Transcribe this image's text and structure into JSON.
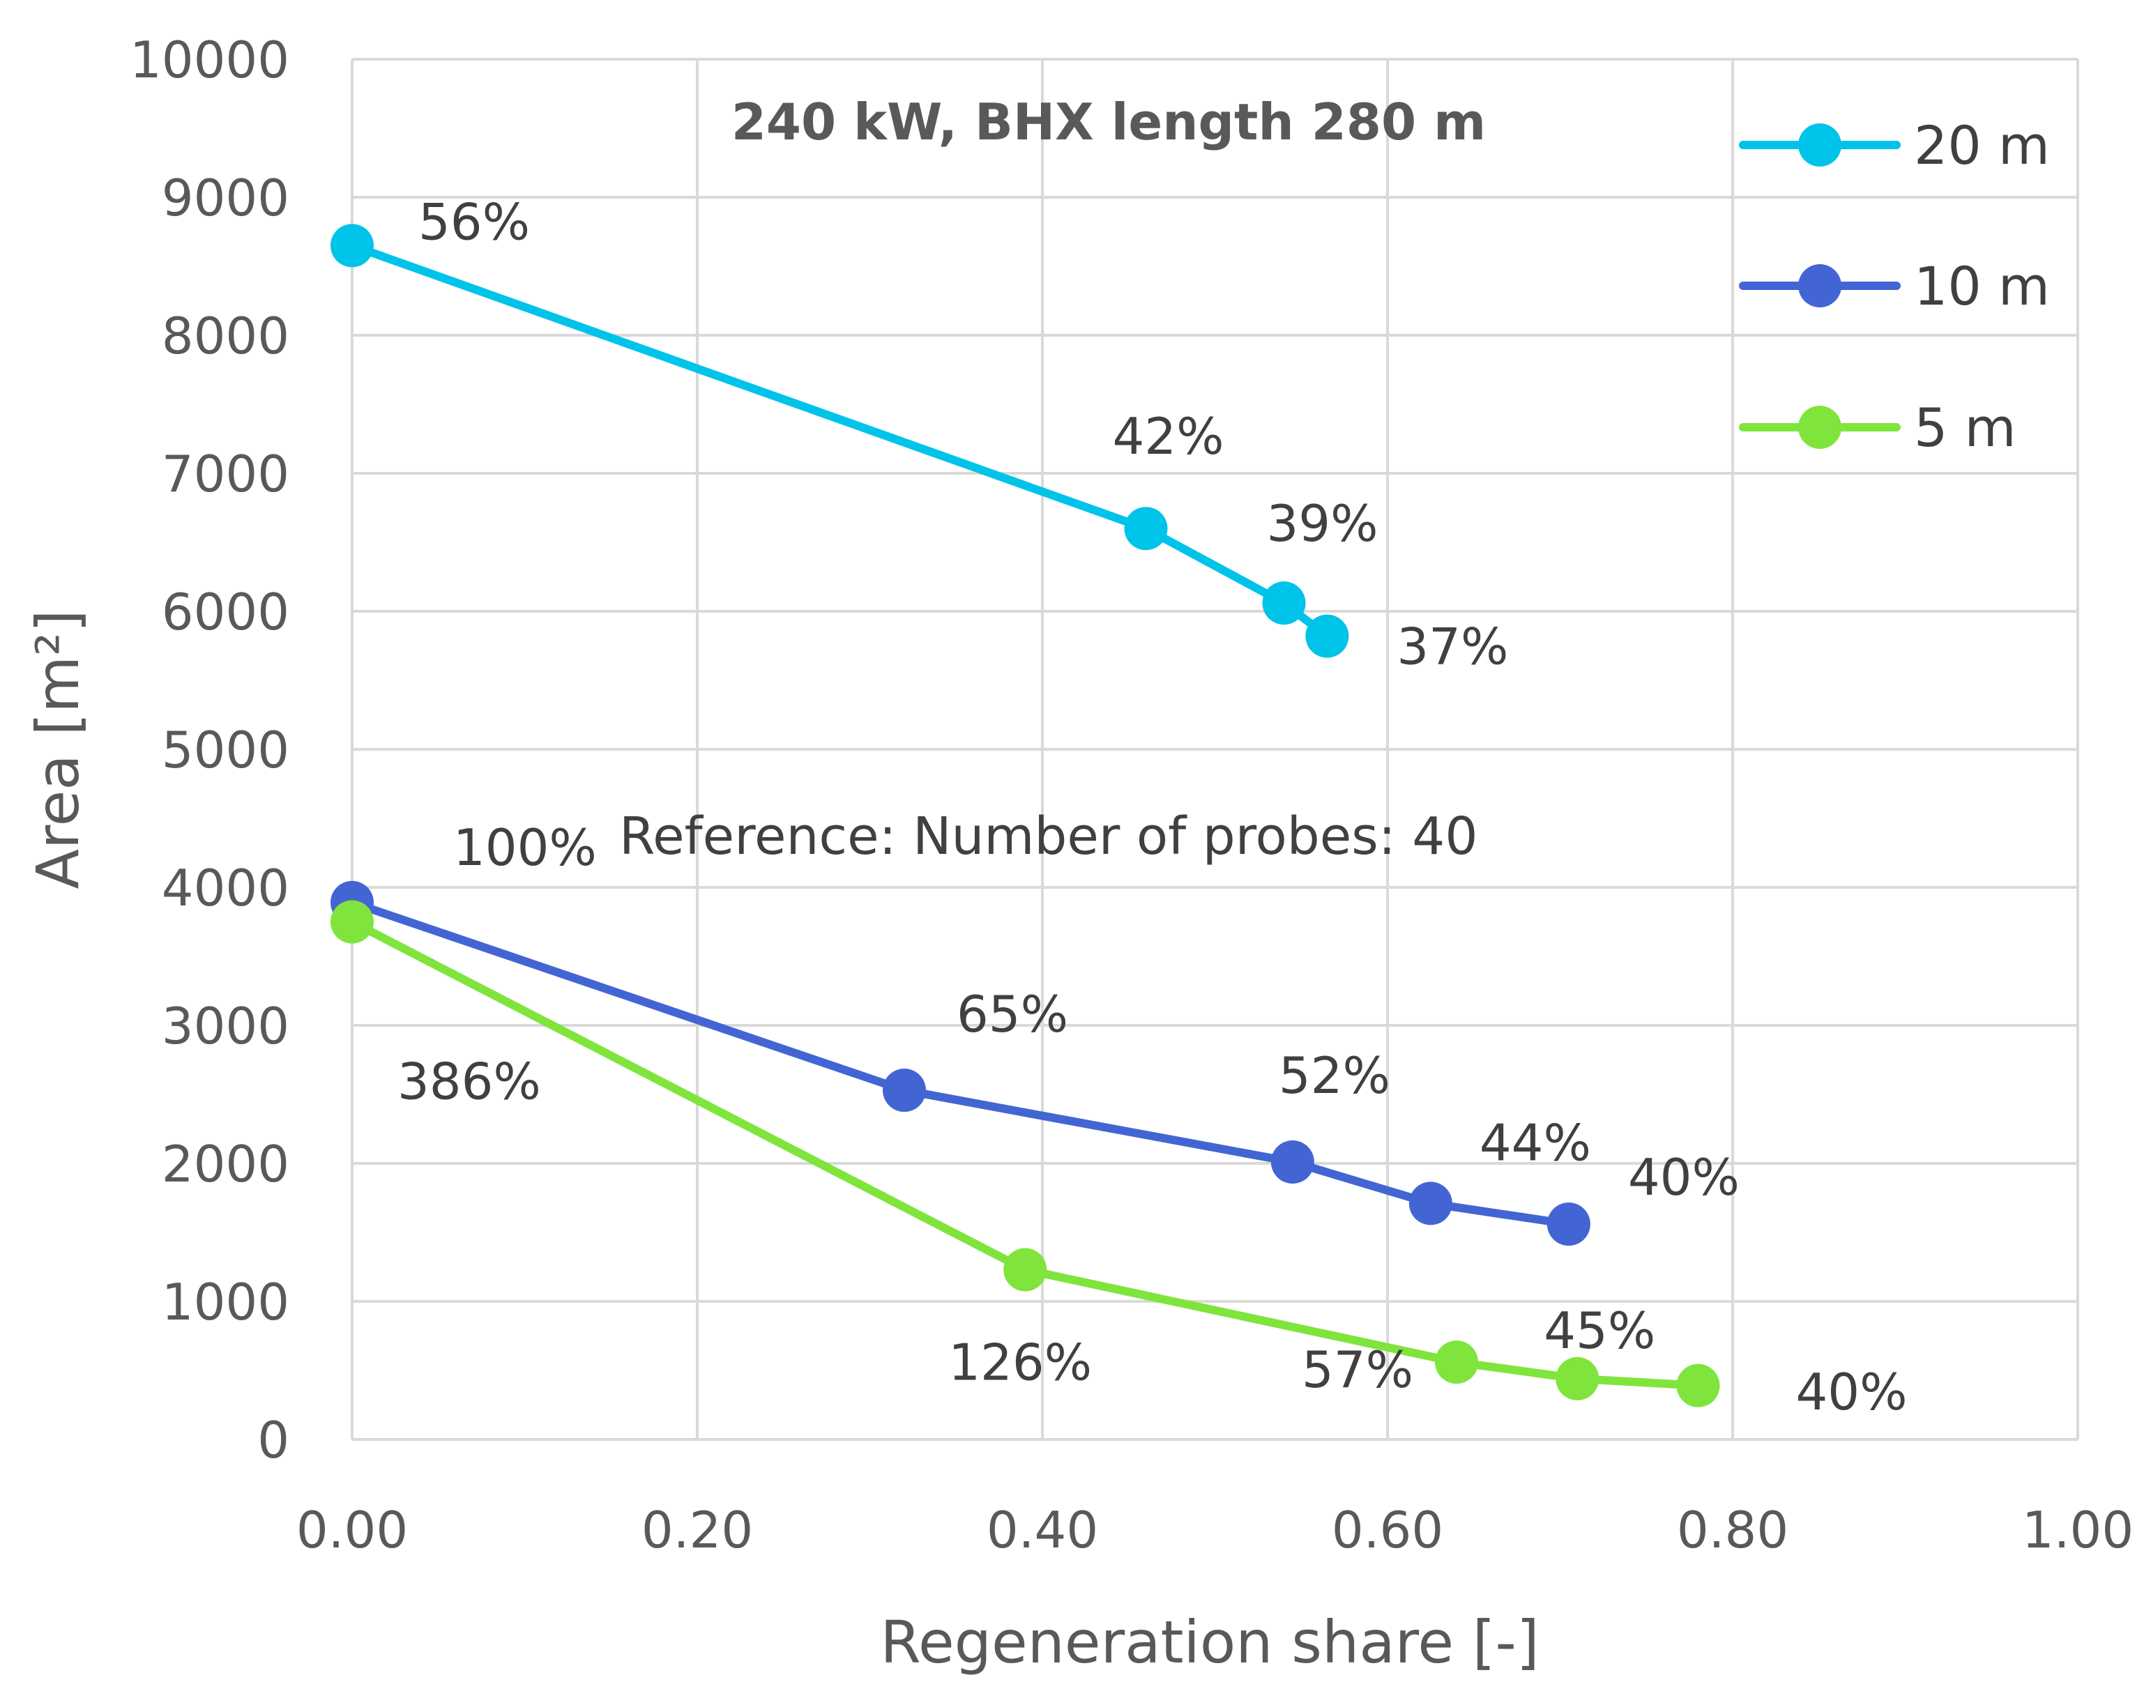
{
  "chart_data": {
    "type": "line",
    "title": "240 kW, BHX length 280 m",
    "xlabel": "Regeneration share [-]",
    "ylabel": "Area [m²]",
    "xlim": [
      0,
      1
    ],
    "ylim": [
      0,
      10000
    ],
    "x_ticks": [
      "0.00",
      "0.20",
      "0.40",
      "0.60",
      "0.80",
      "1.00"
    ],
    "y_ticks": [
      "0",
      "1000",
      "2000",
      "3000",
      "4000",
      "5000",
      "6000",
      "7000",
      "8000",
      "9000",
      "10000"
    ],
    "grid": true,
    "legend_position": "top-right",
    "annotation": "Reference: Number of probes: 40",
    "series": [
      {
        "name": "20 m",
        "color": "#00c3ea",
        "x": [
          0.0,
          0.46,
          0.54,
          0.565
        ],
        "y": [
          8650,
          6600,
          6060,
          5820
        ],
        "labels": [
          "56%",
          "42%",
          "39%",
          "37%"
        ]
      },
      {
        "name": "10 m",
        "color": "#4365d4",
        "x": [
          0.0,
          0.32,
          0.545,
          0.625,
          0.705
        ],
        "y": [
          3890,
          2530,
          2010,
          1710,
          1560
        ],
        "labels": [
          "100%",
          "65%",
          "52%",
          "44%",
          "40%"
        ]
      },
      {
        "name": "5 m",
        "color": "#7fe53d",
        "x": [
          0.0,
          0.39,
          0.64,
          0.71,
          0.78
        ],
        "y": [
          3750,
          1230,
          560,
          440,
          390
        ],
        "labels": [
          "386%",
          "126%",
          "57%",
          "45%",
          "40%"
        ]
      }
    ]
  }
}
